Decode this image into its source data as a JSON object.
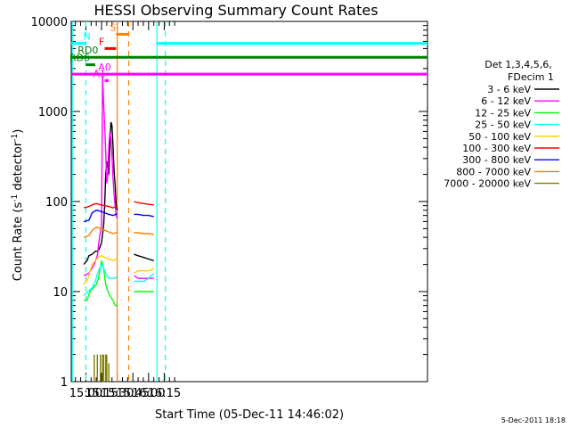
{
  "chart_data": {
    "type": "line",
    "title": "HESSI Observing Summary Count Rates",
    "xlabel": "Start Time (05-Dec-11 14:46:02)",
    "ylabel": "Count Rate (s",
    "ylabel_sup": "-1",
    "ylabel_tail": " detector",
    "ylabel_sup2": "-1",
    "ylabel_close": ")",
    "xlim_minutes": [
      886,
      1227
    ],
    "ylim": [
      1,
      10000
    ],
    "yscale": "log",
    "x_ticks": [
      "15:00",
      "15:15",
      "15:30",
      "15:45",
      "16:00",
      "16:15"
    ],
    "x_tick_minutes": [
      900,
      915,
      930,
      945,
      960,
      975
    ],
    "y_ticks": [
      "1",
      "10",
      "100",
      "1000",
      "10000"
    ],
    "y_tick_values": [
      1,
      10,
      100,
      1000,
      10000
    ],
    "legend_header": [
      "Det 1,3,4,5,6,",
      "FDecim 1"
    ],
    "legend_placement": "right",
    "series": [
      {
        "name": "3 - 6 keV",
        "color": "#000000",
        "segments": [
          [
            [
              898,
              20
            ],
            [
              901,
              22
            ],
            [
              903,
              25
            ],
            [
              906,
              26
            ],
            [
              909,
              28
            ],
            [
              911,
              28
            ],
            [
              913,
              30
            ],
            [
              915,
              35
            ],
            [
              917,
              55
            ],
            [
              918,
              90
            ],
            [
              919,
              200
            ],
            [
              920,
              280
            ],
            [
              921,
              230
            ],
            [
              922,
              200
            ],
            [
              923,
              450
            ],
            [
              924,
              760
            ],
            [
              925,
              700
            ],
            [
              926,
              420
            ],
            [
              927,
              220
            ],
            [
              928,
              150
            ],
            [
              929,
              92
            ],
            [
              930,
              80
            ]
          ],
          [
            [
              946,
              26
            ],
            [
              950,
              25
            ],
            [
              955,
              24
            ],
            [
              960,
              23
            ],
            [
              965,
              22
            ]
          ]
        ]
      },
      {
        "name": "6 - 12 keV",
        "color": "#ff00ff",
        "segments": [
          [
            [
              898,
              15
            ],
            [
              903,
              16
            ],
            [
              908,
              20
            ],
            [
              911,
              25
            ],
            [
              913,
              40
            ],
            [
              915,
              55
            ],
            [
              916,
              2600
            ],
            [
              917,
              1200
            ],
            [
              918,
              700
            ],
            [
              919,
              350
            ],
            [
              920,
              160
            ],
            [
              921,
              200
            ],
            [
              922,
              420
            ],
            [
              923,
              600
            ],
            [
              924,
              500
            ],
            [
              925,
              330
            ],
            [
              926,
              180
            ],
            [
              927,
              120
            ],
            [
              928,
              90
            ],
            [
              929,
              70
            ],
            [
              930,
              65
            ]
          ],
          [
            [
              946,
              15
            ],
            [
              950,
              14
            ],
            [
              955,
              14
            ],
            [
              960,
              14
            ],
            [
              965,
              14
            ]
          ]
        ]
      },
      {
        "name": "12 - 25 keV",
        "color": "#00ff00",
        "segments": [
          [
            [
              898,
              8
            ],
            [
              901,
              8
            ],
            [
              904,
              10
            ],
            [
              907,
              11
            ],
            [
              910,
              12
            ],
            [
              912,
              14
            ],
            [
              915,
              22
            ],
            [
              917,
              18
            ],
            [
              919,
              12
            ],
            [
              921,
              10
            ],
            [
              923,
              9
            ],
            [
              926,
              8
            ],
            [
              928,
              7
            ],
            [
              930,
              7
            ]
          ],
          [
            [
              946,
              10
            ],
            [
              950,
              10
            ],
            [
              955,
              10
            ],
            [
              960,
              10
            ],
            [
              965,
              10
            ]
          ]
        ]
      },
      {
        "name": "25 - 50 keV",
        "color": "#00ffff",
        "segments": [
          [
            [
              898,
              9
            ],
            [
              902,
              10
            ],
            [
              906,
              11
            ],
            [
              909,
              13
            ],
            [
              912,
              17
            ],
            [
              915,
              20
            ],
            [
              917,
              18
            ],
            [
              919,
              16
            ],
            [
              922,
              14
            ],
            [
              925,
              14
            ],
            [
              928,
              14
            ],
            [
              930,
              15
            ]
          ],
          [
            [
              946,
              13
            ],
            [
              950,
              13
            ],
            [
              955,
              13
            ],
            [
              960,
              14
            ],
            [
              965,
              16
            ]
          ]
        ]
      },
      {
        "name": "50 - 100 keV",
        "color": "#ffcc00",
        "segments": [
          [
            [
              898,
              12
            ],
            [
              902,
              14
            ],
            [
              906,
              20
            ],
            [
              909,
              22
            ],
            [
              912,
              24
            ],
            [
              915,
              25
            ],
            [
              918,
              24
            ],
            [
              922,
              23
            ],
            [
              926,
              22
            ],
            [
              929,
              23
            ],
            [
              930,
              24
            ]
          ],
          [
            [
              946,
              16
            ],
            [
              950,
              17
            ],
            [
              955,
              17
            ],
            [
              960,
              17
            ],
            [
              965,
              18
            ]
          ]
        ]
      },
      {
        "name": "100 - 300 keV",
        "color": "#ff0000",
        "segments": [
          [
            [
              898,
              85
            ],
            [
              903,
              88
            ],
            [
              906,
              92
            ],
            [
              910,
              95
            ],
            [
              914,
              92
            ],
            [
              918,
              90
            ],
            [
              922,
              88
            ],
            [
              926,
              85
            ],
            [
              929,
              88
            ],
            [
              930,
              88
            ]
          ],
          [
            [
              946,
              100
            ],
            [
              950,
              97
            ],
            [
              955,
              95
            ],
            [
              960,
              93
            ],
            [
              965,
              92
            ]
          ]
        ]
      },
      {
        "name": "300 - 800 keV",
        "color": "#0000ff",
        "segments": [
          [
            [
              898,
              60
            ],
            [
              903,
              62
            ],
            [
              906,
              75
            ],
            [
              910,
              80
            ],
            [
              914,
              78
            ],
            [
              918,
              75
            ],
            [
              922,
              72
            ],
            [
              926,
              70
            ],
            [
              929,
              72
            ],
            [
              930,
              74
            ]
          ],
          [
            [
              946,
              72
            ],
            [
              950,
              72
            ],
            [
              955,
              70
            ],
            [
              960,
              70
            ],
            [
              965,
              68
            ]
          ]
        ]
      },
      {
        "name": "800 - 7000 keV",
        "color": "#ff7f00",
        "segments": [
          [
            [
              898,
              40
            ],
            [
              903,
              42
            ],
            [
              906,
              48
            ],
            [
              910,
              52
            ],
            [
              914,
              50
            ],
            [
              918,
              48
            ],
            [
              922,
              46
            ],
            [
              926,
              44
            ],
            [
              929,
              45
            ],
            [
              930,
              46
            ]
          ],
          [
            [
              946,
              45
            ],
            [
              950,
              45
            ],
            [
              955,
              44
            ],
            [
              960,
              44
            ],
            [
              965,
              43
            ]
          ]
        ]
      },
      {
        "name": "7000 - 20000 keV",
        "color": "#808000",
        "segments": [
          [
            [
              908,
              1
            ],
            [
              908,
              2
            ],
            [
              908,
              1
            ]
          ],
          [
            [
              911,
              1
            ],
            [
              911,
              2
            ],
            [
              911,
              1
            ]
          ],
          [
            [
              914,
              1
            ],
            [
              914,
              2
            ],
            [
              914,
              1
            ]
          ],
          [
            [
              916,
              1
            ],
            [
              916,
              2
            ],
            [
              916,
              1
            ]
          ],
          [
            [
              917,
              1
            ],
            [
              917,
              2
            ],
            [
              917,
              1
            ]
          ],
          [
            [
              919,
              1
            ],
            [
              919,
              2
            ],
            [
              919,
              1
            ]
          ],
          [
            [
              920,
              1
            ],
            [
              920,
              2
            ],
            [
              920,
              1
            ]
          ],
          [
            [
              922,
              1
            ],
            [
              922,
              1.6
            ],
            [
              922,
              1
            ]
          ]
        ]
      }
    ],
    "flag_bars": [
      {
        "label": "N",
        "color": "#00ffff",
        "value": 5700,
        "spans": [
          [
            886,
            900
          ],
          [
            968,
            1227
          ]
        ],
        "label_at": 901
      },
      {
        "label": "S",
        "color": "#ff7f00",
        "value": 7200,
        "spans": [
          [
            929,
            941
          ]
        ],
        "label_at": 926
      },
      {
        "label": "F",
        "color": "#ff0000",
        "value": 5000,
        "spans": [
          [
            918,
            929
          ]
        ],
        "label_at": 915
      },
      {
        "label": "RD0",
        "color": "#008000",
        "value": 4000,
        "spans": [
          [
            886,
            1227
          ]
        ],
        "label_at": 902
      },
      {
        "label": "RD6",
        "color": "#008000",
        "value": 3300,
        "spans": [
          [
            900,
            909
          ]
        ],
        "label_at": 894
      },
      {
        "label": "A0",
        "color": "#ff00ff",
        "value": 2600,
        "spans": [
          [
            886,
            1227
          ]
        ],
        "label_at": 918
      },
      {
        "label": "A1",
        "color": "#ff00ff",
        "value": 2200,
        "spans": [
          [
            918,
            922
          ]
        ],
        "label_at": 913
      }
    ],
    "vlines": [
      {
        "x": 900,
        "color": "#00ffff",
        "style": "dashed"
      },
      {
        "x": 930,
        "color": "#ff7f00",
        "style": "solid"
      },
      {
        "x": 941,
        "color": "#ff7f00",
        "style": "dashed"
      },
      {
        "x": 968,
        "color": "#00ffff",
        "style": "solid"
      },
      {
        "x": 887,
        "color": "#00ffff",
        "style": "solid"
      },
      {
        "x": 976,
        "color": "#00ffff",
        "style": "dashed"
      }
    ],
    "footer": "5-Dec-2011 18:18"
  }
}
